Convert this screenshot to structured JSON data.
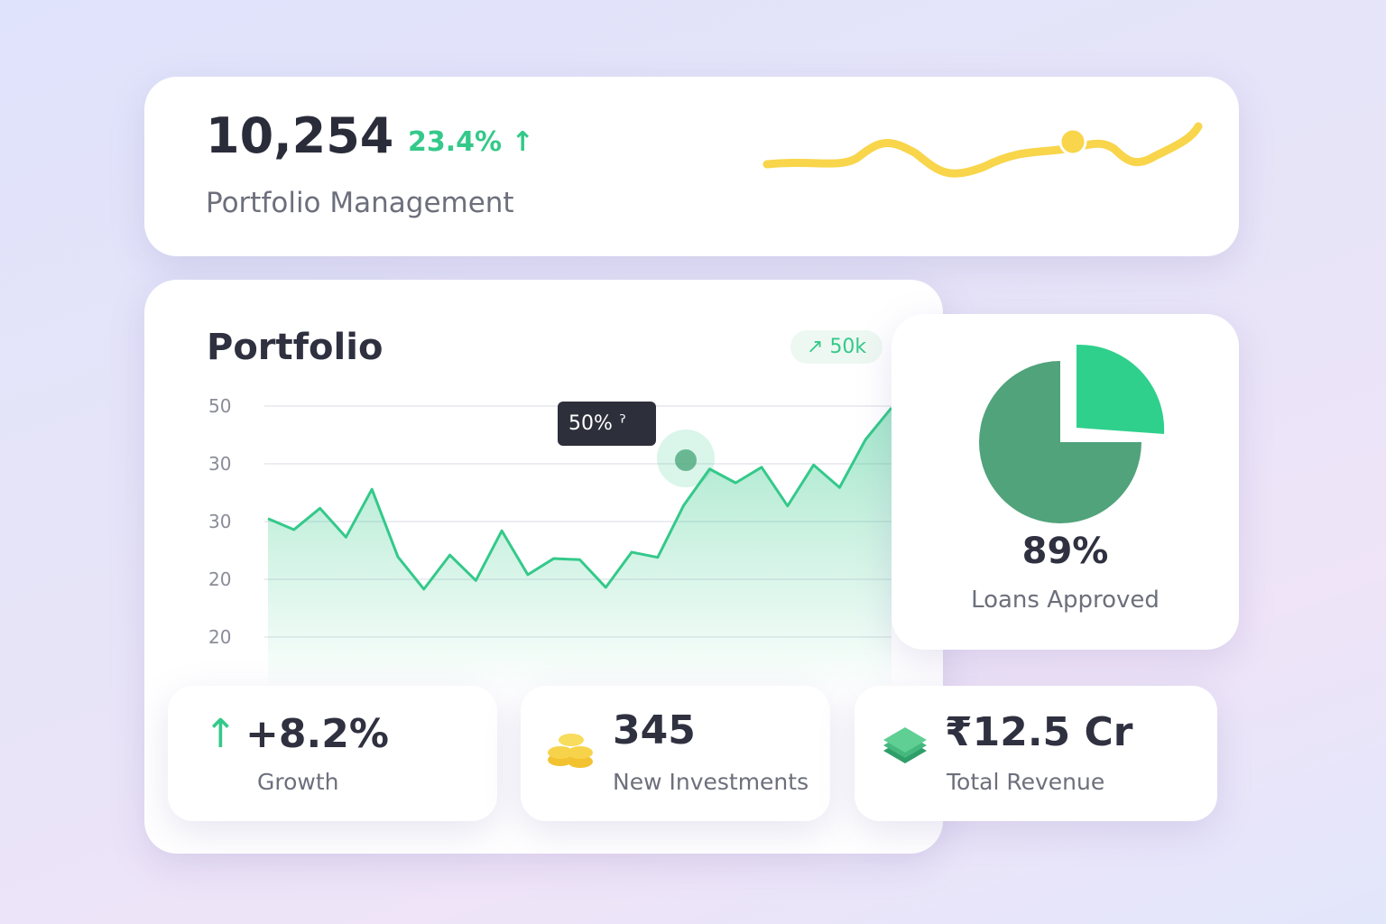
{
  "summary": {
    "value": "10,254",
    "change": "23.4%",
    "label": "Portfolio Management"
  },
  "portfolio": {
    "title": "Portfolio",
    "badge": "50k",
    "tooltip": "50%",
    "y_axis_labels": [
      "50",
      "30",
      "30",
      "20",
      "20"
    ],
    "chart_data": {
      "type": "line",
      "color": "#34c98a",
      "ylim": [
        10,
        50
      ],
      "values": [
        30.5,
        28.6,
        32.3,
        27.3,
        35.6,
        23.9,
        18.3,
        24.2,
        19.8,
        28.4,
        20.8,
        23.6,
        23.4,
        18.6,
        24.7,
        23.8,
        32.8,
        39.1,
        36.7,
        39.4,
        32.7,
        39.8,
        35.9,
        44.2,
        49.7
      ]
    }
  },
  "loans": {
    "value": "89%",
    "label": "Loans Approved"
  },
  "stats": [
    {
      "value": "+8.2%",
      "label": "Growth"
    },
    {
      "value": "345",
      "label": "New Investments"
    },
    {
      "value": "₹12.5 Cr",
      "label": "Total Revenue"
    }
  ]
}
